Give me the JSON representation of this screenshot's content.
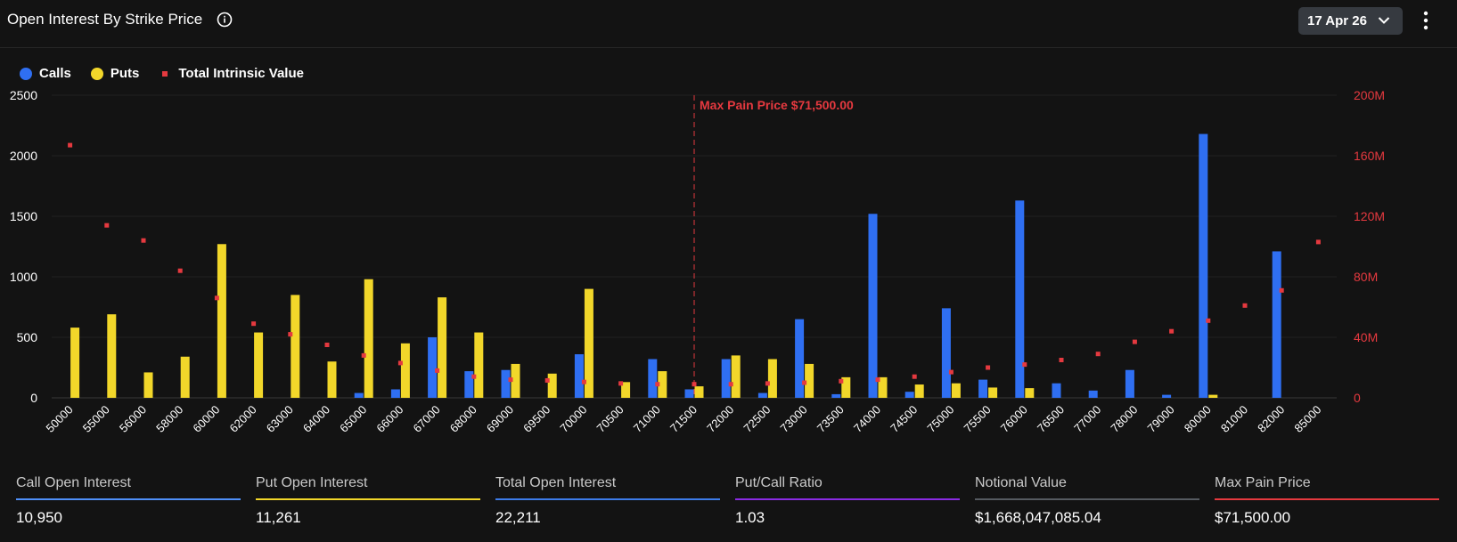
{
  "header": {
    "title": "Open Interest By Strike Price",
    "date_selector": "17 Apr 26"
  },
  "legend": [
    {
      "label": "Calls",
      "color": "#2f6ff2",
      "icon": "circle"
    },
    {
      "label": "Puts",
      "color": "#f2d72a",
      "icon": "circle"
    },
    {
      "label": "Total Intrinsic Value",
      "color": "#e5393f",
      "icon": "square"
    }
  ],
  "chart_data": {
    "type": "bar",
    "categories": [
      "50000",
      "55000",
      "56000",
      "58000",
      "60000",
      "62000",
      "63000",
      "64000",
      "65000",
      "66000",
      "67000",
      "68000",
      "69000",
      "69500",
      "70000",
      "70500",
      "71000",
      "71500",
      "72000",
      "72500",
      "73000",
      "73500",
      "74000",
      "74500",
      "75000",
      "75500",
      "76000",
      "76500",
      "77000",
      "78000",
      "79000",
      "80000",
      "81000",
      "82000",
      "85000"
    ],
    "series": [
      {
        "name": "Calls",
        "axis": "left",
        "color": "#2f6ff2",
        "values": [
          0,
          0,
          0,
          0,
          0,
          0,
          0,
          0,
          40,
          70,
          500,
          220,
          230,
          0,
          360,
          0,
          320,
          70,
          320,
          40,
          650,
          30,
          1520,
          50,
          740,
          150,
          1630,
          120,
          60,
          230,
          25,
          2180,
          0,
          1210,
          0
        ]
      },
      {
        "name": "Puts",
        "axis": "left",
        "color": "#f2d72a",
        "values": [
          580,
          690,
          210,
          340,
          1270,
          540,
          850,
          300,
          980,
          450,
          830,
          540,
          280,
          200,
          900,
          130,
          220,
          95,
          350,
          320,
          280,
          170,
          170,
          110,
          120,
          85,
          80,
          0,
          0,
          0,
          0,
          25,
          0,
          0,
          0
        ]
      },
      {
        "name": "Total Intrinsic Value",
        "axis": "right",
        "type": "scatter",
        "color": "#e5393f",
        "values": [
          167000000,
          114000000,
          104000000,
          84000000,
          66000000,
          49000000,
          42000000,
          35000000,
          28000000,
          23000000,
          18000000,
          14000000,
          12000000,
          11500000,
          10500000,
          9500000,
          9000000,
          9000000,
          9000000,
          9500000,
          10000000,
          11000000,
          12000000,
          14000000,
          17000000,
          20000000,
          22000000,
          25000000,
          29000000,
          37000000,
          44000000,
          51000000,
          61000000,
          71000000,
          103000000
        ]
      }
    ],
    "y_left": {
      "ylim": [
        0,
        2500
      ],
      "ticks": [
        0,
        500,
        1000,
        1500,
        2000,
        2500
      ],
      "tick_labels": [
        "0",
        "500",
        "1000",
        "1500",
        "2000",
        "2500"
      ]
    },
    "y_right": {
      "ylim": [
        0,
        200000000
      ],
      "ticks": [
        0,
        40000000,
        80000000,
        120000000,
        160000000,
        200000000
      ],
      "tick_labels": [
        "0",
        "40M",
        "80M",
        "120M",
        "160M",
        "200M"
      ]
    },
    "annotation": {
      "category": "71500",
      "label": "Max Pain Price $71,500.00"
    }
  },
  "stats": [
    {
      "label": "Call Open Interest",
      "value": "10,950",
      "color": "#4f8ff7"
    },
    {
      "label": "Put Open Interest",
      "value": "11,261",
      "color": "#f2d72a"
    },
    {
      "label": "Total Open Interest",
      "value": "22,211",
      "color": "#3d7be8"
    },
    {
      "label": "Put/Call Ratio",
      "value": "1.03",
      "color": "#8a2be2"
    },
    {
      "label": "Notional Value",
      "value": "$1,668,047,085.04",
      "color": "#555a60"
    },
    {
      "label": "Max Pain Price",
      "value": "$71,500.00",
      "color": "#e5393f"
    }
  ]
}
